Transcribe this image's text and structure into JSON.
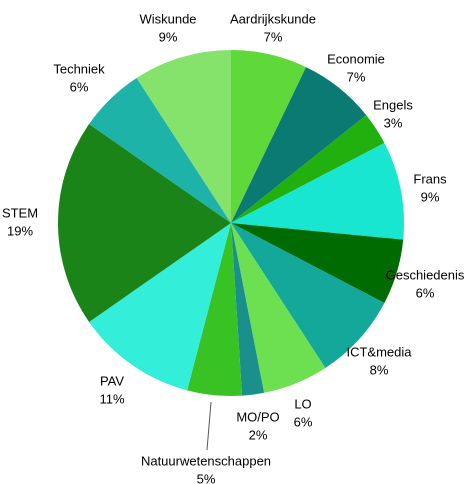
{
  "chart_data": {
    "type": "pie",
    "categories": [
      "Aardrijkskunde",
      "Economie",
      "Engels",
      "Frans",
      "Geschiedenis",
      "ICT&media",
      "LO",
      "MO/PO",
      "Natuurwetenschappen",
      "PAV",
      "STEM",
      "Techniek",
      "Wiskunde"
    ],
    "values": [
      7,
      7,
      3,
      9,
      6,
      8,
      6,
      2,
      5,
      11,
      19,
      6,
      9
    ],
    "value_labels": [
      "7%",
      "7%",
      "3%",
      "9%",
      "6%",
      "8%",
      "6%",
      "2%",
      "5%",
      "11%",
      "19%",
      "6%",
      "9%"
    ],
    "colors": [
      "#5fd93a",
      "#0a7a72",
      "#22b00e",
      "#19e6d0",
      "#006b00",
      "#13a89a",
      "#6de052",
      "#1a8f8c",
      "#38c224",
      "#33eed8",
      "#1b8418",
      "#1eb3a8",
      "#85e36c"
    ]
  }
}
